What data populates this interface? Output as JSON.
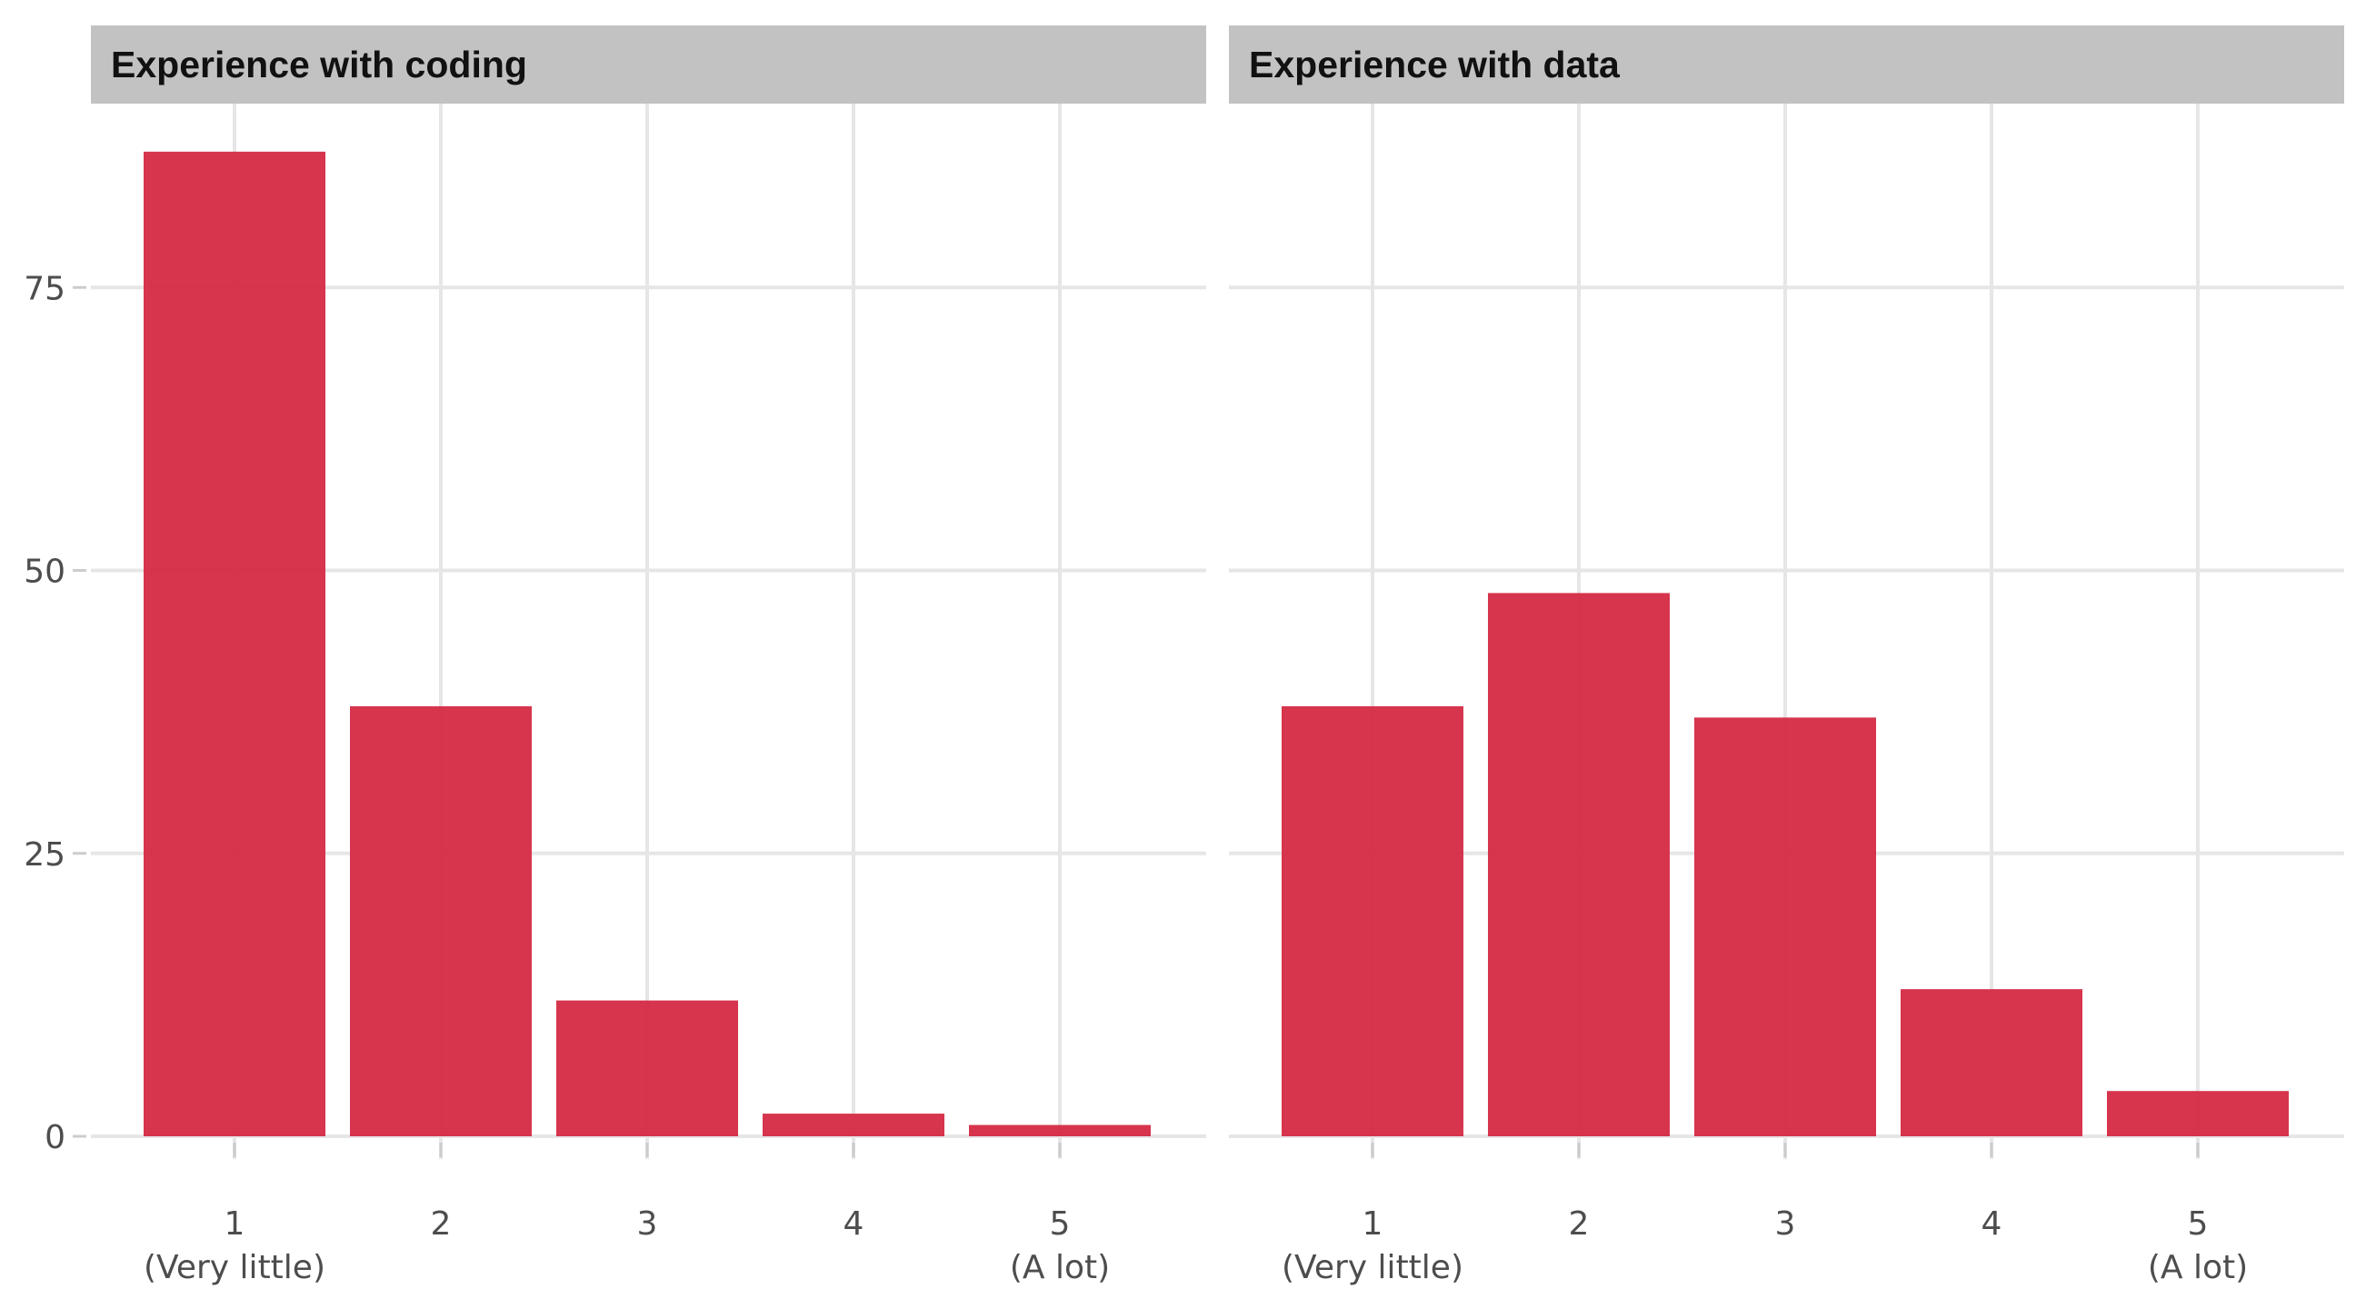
{
  "chart_data": [
    {
      "type": "bar",
      "title": "Experience with coding",
      "categories": [
        "1",
        "2",
        "3",
        "4",
        "5"
      ],
      "category_sublabels": [
        "(Very little)",
        "",
        "",
        "",
        "(A lot)"
      ],
      "values": [
        87,
        38,
        12,
        2,
        1
      ],
      "y_ticks": [
        "0",
        "25",
        "50",
        "75"
      ],
      "ylim": [
        0,
        87
      ],
      "xlabel": "",
      "ylabel": "",
      "grid": true,
      "bar_color": "#d42a43"
    },
    {
      "type": "bar",
      "title": "Experience with data",
      "categories": [
        "1",
        "2",
        "3",
        "4",
        "5"
      ],
      "category_sublabels": [
        "(Very little)",
        "",
        "",
        "",
        "(A lot)"
      ],
      "values": [
        38,
        48,
        37,
        13,
        4
      ],
      "y_ticks": [
        "0",
        "25",
        "50",
        "75"
      ],
      "ylim": [
        0,
        87
      ],
      "xlabel": "",
      "ylabel": "",
      "grid": true,
      "bar_color": "#d42a43"
    }
  ]
}
